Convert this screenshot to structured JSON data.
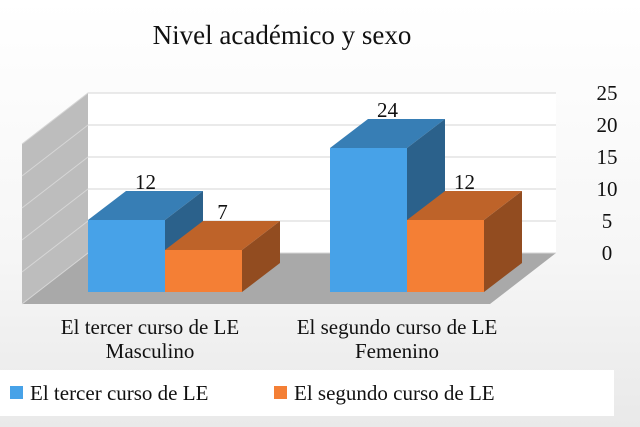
{
  "chart_data": {
    "type": "bar",
    "title": "Nivel académico y sexo",
    "categories": [
      [
        "El tercer curso de LE",
        "Masculino"
      ],
      [
        "El segundo curso de LE",
        "Femenino"
      ]
    ],
    "series": [
      {
        "name": "El tercer curso de LE",
        "values": [
          12,
          24
        ],
        "color": "#47a2e8"
      },
      {
        "name": "El segundo curso de LE",
        "values": [
          7,
          12
        ],
        "color": "#f47f35"
      }
    ],
    "ylim": [
      0,
      25
    ],
    "yticks": [
      0,
      5,
      10,
      15,
      20,
      25
    ],
    "grid": true,
    "legend_position": "bottom",
    "style": "3d-clustered-bar"
  }
}
